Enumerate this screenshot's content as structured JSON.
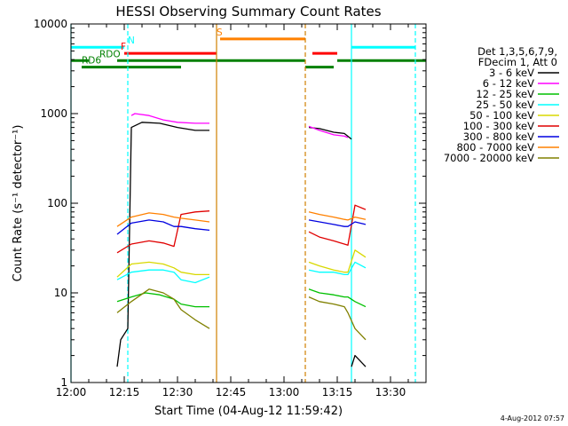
{
  "chart_data": {
    "type": "line",
    "title": "HESSI Observing Summary Count Rates",
    "xlabel": "Start Time (04-Aug-12 11:59:42)",
    "ylabel": "Count Rate (s⁻¹ detector⁻¹)",
    "ylog": true,
    "xlim": [
      "12:00",
      "13:40"
    ],
    "ylim": [
      1,
      10000
    ],
    "x_ticks": [
      "12:00",
      "12:15",
      "12:30",
      "12:45",
      "13:00",
      "13:15",
      "13:30"
    ],
    "y_ticks": [
      "1",
      "10",
      "100",
      "1000",
      "10000"
    ],
    "legend_header": [
      "Det 1,3,5,6,7,9,",
      "FDecim 1, Att 0"
    ],
    "legend_position": "right",
    "series": [
      {
        "name": "3 - 6 keV",
        "color": "#000000",
        "segments": [
          {
            "x": [
              "12:13",
              "12:14",
              "12:16",
              "12:17",
              "12:20",
              "12:25",
              "12:30",
              "12:35",
              "12:39"
            ],
            "y": [
              1.5,
              3,
              4,
              700,
              800,
              780,
              700,
              650,
              650
            ]
          },
          {
            "x": [
              "13:07",
              "13:10",
              "13:14",
              "13:17",
              "13:19"
            ],
            "y": [
              700,
              680,
              620,
              600,
              520
            ]
          },
          {
            "x": [
              "13:19",
              "13:20",
              "13:23"
            ],
            "y": [
              1.5,
              2,
              1.5
            ]
          }
        ]
      },
      {
        "name": "6 - 12 keV",
        "color": "#ff00ff",
        "segments": [
          {
            "x": [
              "12:17",
              "12:18",
              "12:22",
              "12:26",
              "12:30",
              "12:35",
              "12:39"
            ],
            "y": [
              950,
              1000,
              950,
              850,
              800,
              780,
              780
            ]
          },
          {
            "x": [
              "13:07",
              "13:10",
              "13:14",
              "13:17",
              "13:18"
            ],
            "y": [
              720,
              650,
              580,
              560,
              540
            ]
          }
        ]
      },
      {
        "name": "12 - 25 keV",
        "color": "#00c000",
        "segments": [
          {
            "x": [
              "12:13",
              "12:17",
              "12:21",
              "12:25",
              "12:29",
              "12:31",
              "12:35",
              "12:39"
            ],
            "y": [
              8,
              9,
              10,
              9.5,
              8.5,
              7.5,
              7,
              7
            ]
          },
          {
            "x": [
              "13:07",
              "13:10",
              "13:14",
              "13:17",
              "13:18",
              "13:20",
              "13:23"
            ],
            "y": [
              11,
              10,
              9.5,
              9,
              9,
              8,
              7
            ]
          }
        ]
      },
      {
        "name": "25 - 50 keV",
        "color": "#00ffff",
        "segments": [
          {
            "x": [
              "12:13",
              "12:17",
              "12:22",
              "12:26",
              "12:29",
              "12:31",
              "12:35",
              "12:39"
            ],
            "y": [
              14,
              17,
              18,
              18,
              17,
              14,
              13,
              15
            ]
          },
          {
            "x": [
              "13:07",
              "13:10",
              "13:14",
              "13:17",
              "13:18",
              "13:20",
              "13:23"
            ],
            "y": [
              18,
              17,
              17,
              16,
              16,
              22,
              19
            ]
          }
        ]
      },
      {
        "name": "50 - 100 keV",
        "color": "#d8d800",
        "segments": [
          {
            "x": [
              "12:13",
              "12:17",
              "12:22",
              "12:26",
              "12:29",
              "12:31",
              "12:35",
              "12:39"
            ],
            "y": [
              15,
              21,
              22,
              21,
              19,
              17,
              16,
              16
            ]
          },
          {
            "x": [
              "13:07",
              "13:10",
              "13:14",
              "13:17",
              "13:18",
              "13:20",
              "13:23"
            ],
            "y": [
              22,
              20,
              18,
              17,
              17,
              30,
              25
            ]
          }
        ]
      },
      {
        "name": "100 - 300 keV",
        "color": "#e00000",
        "segments": [
          {
            "x": [
              "12:13",
              "12:17",
              "12:22",
              "12:26",
              "12:29",
              "12:31",
              "12:35",
              "12:39"
            ],
            "y": [
              28,
              35,
              38,
              36,
              33,
              75,
              80,
              82
            ]
          },
          {
            "x": [
              "13:07",
              "13:10",
              "13:14",
              "13:17",
              "13:18",
              "13:20",
              "13:23"
            ],
            "y": [
              48,
              42,
              38,
              35,
              34,
              95,
              85
            ]
          }
        ]
      },
      {
        "name": "300 - 800 keV",
        "color": "#0000e0",
        "segments": [
          {
            "x": [
              "12:13",
              "12:17",
              "12:22",
              "12:26",
              "12:29",
              "12:31",
              "12:35",
              "12:39"
            ],
            "y": [
              45,
              60,
              65,
              62,
              55,
              55,
              52,
              50
            ]
          },
          {
            "x": [
              "13:07",
              "13:10",
              "13:14",
              "13:17",
              "13:18",
              "13:20",
              "13:23"
            ],
            "y": [
              65,
              62,
              58,
              55,
              55,
              62,
              58
            ]
          }
        ]
      },
      {
        "name": "800 - 7000 keV",
        "color": "#ff8000",
        "segments": [
          {
            "x": [
              "12:13",
              "12:17",
              "12:22",
              "12:26",
              "12:29",
              "12:31",
              "12:35",
              "12:39"
            ],
            "y": [
              55,
              70,
              78,
              75,
              70,
              68,
              65,
              62
            ]
          },
          {
            "x": [
              "13:07",
              "13:10",
              "13:14",
              "13:17",
              "13:18",
              "13:20",
              "13:23"
            ],
            "y": [
              80,
              75,
              70,
              66,
              65,
              70,
              66
            ]
          }
        ]
      },
      {
        "name": "7000 - 20000 keV",
        "color": "#808000",
        "segments": [
          {
            "x": [
              "12:13",
              "12:17",
              "12:22",
              "12:26",
              "12:29",
              "12:31",
              "12:35",
              "12:39"
            ],
            "y": [
              6,
              8,
              11,
              10,
              8.5,
              6.5,
              5,
              4
            ]
          },
          {
            "x": [
              "13:07",
              "13:10",
              "13:14",
              "13:17",
              "13:18",
              "13:20",
              "13:23"
            ],
            "y": [
              9,
              8,
              7.5,
              7,
              6,
              4,
              3
            ]
          }
        ]
      }
    ],
    "flags": [
      {
        "label": "",
        "color": "#00ffff",
        "y": 5500,
        "x": [
          [
            "12:00",
            "12:15"
          ],
          [
            "13:19",
            "13:37"
          ]
        ]
      },
      {
        "label": "N",
        "color": "#00ffff",
        "y": 5500,
        "x": [],
        "label_x": "12:16"
      },
      {
        "label": "F",
        "color": "#ff0000",
        "y": 4700,
        "x": [
          [
            "12:15",
            "12:41"
          ],
          [
            "13:08",
            "13:15"
          ]
        ],
        "label_x": "12:14"
      },
      {
        "label": "S",
        "color": "#ff8000",
        "y": 6800,
        "x": [
          [
            "12:42",
            "13:06"
          ]
        ],
        "label_x": "12:41"
      },
      {
        "label": "RDO",
        "color": "#008000",
        "y": 3900,
        "x": [
          [
            "12:00",
            "12:05"
          ],
          [
            "12:13",
            "13:06"
          ],
          [
            "13:15",
            "13:40"
          ]
        ],
        "label_x": "12:08"
      },
      {
        "label": "RD6",
        "color": "#008000",
        "y": 3300,
        "x": [
          [
            "12:03",
            "12:31"
          ],
          [
            "13:06",
            "13:14"
          ]
        ],
        "label_x": "12:03"
      }
    ],
    "vlines": [
      {
        "x": "12:00",
        "color": "#00ffff",
        "style": "solid"
      },
      {
        "x": "12:16",
        "color": "#00ffff",
        "style": "dashed"
      },
      {
        "x": "12:41",
        "color": "#d08000",
        "style": "solid"
      },
      {
        "x": "13:06",
        "color": "#d08000",
        "style": "dashed"
      },
      {
        "x": "13:19",
        "color": "#00ffff",
        "style": "solid"
      },
      {
        "x": "13:37",
        "color": "#00ffff",
        "style": "dashed"
      }
    ],
    "timestamp": "4-Aug-2012 07:57"
  }
}
